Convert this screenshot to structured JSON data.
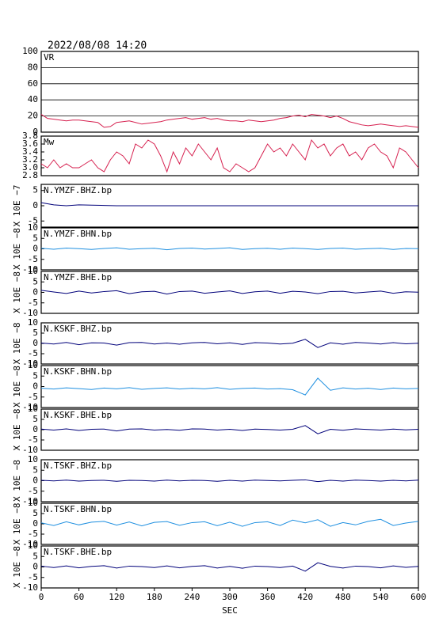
{
  "chart_data": [
    {
      "type": "line",
      "title": "2022/08/08 14:20",
      "xlim": [
        0,
        600
      ],
      "ylim": [
        0,
        100
      ],
      "yticks": [
        0,
        20,
        40,
        60,
        80,
        100
      ],
      "grid": true,
      "x": [
        0,
        10,
        20,
        30,
        40,
        50,
        60,
        70,
        80,
        90,
        100,
        110,
        120,
        130,
        140,
        150,
        160,
        170,
        180,
        190,
        200,
        210,
        220,
        230,
        240,
        250,
        260,
        270,
        280,
        290,
        300,
        310,
        320,
        330,
        340,
        350,
        360,
        370,
        380,
        390,
        400,
        410,
        420,
        430,
        440,
        450,
        460,
        470,
        480,
        490,
        500,
        510,
        520,
        530,
        540,
        550,
        560,
        570,
        580,
        590,
        600
      ],
      "series": [
        {
          "name": "VR",
          "color": "#d6204f",
          "values": [
            22,
            17,
            16,
            15,
            14,
            15,
            15,
            14,
            13,
            12,
            6,
            7,
            12,
            13,
            14,
            12,
            10,
            11,
            12,
            13,
            15,
            16,
            17,
            18,
            16,
            17,
            18,
            16,
            17,
            15,
            14,
            14,
            13,
            15,
            14,
            13,
            14,
            15,
            17,
            18,
            20,
            21,
            19,
            22,
            21,
            20,
            18,
            20,
            17,
            13,
            11,
            9,
            8,
            9,
            10,
            9,
            8,
            7,
            8,
            7,
            6
          ]
        }
      ]
    },
    {
      "type": "line",
      "xlim": [
        0,
        600
      ],
      "ylim": [
        2.8,
        3.8
      ],
      "yticks": [
        2.8,
        {
          "value": 3,
          "label": "3.0"
        },
        3.2,
        3.4,
        3.6,
        3.8
      ],
      "grid": false,
      "x": [
        0,
        10,
        20,
        30,
        40,
        50,
        60,
        70,
        80,
        90,
        100,
        110,
        120,
        130,
        140,
        150,
        160,
        170,
        180,
        190,
        200,
        210,
        220,
        230,
        240,
        250,
        260,
        270,
        280,
        290,
        300,
        310,
        320,
        330,
        340,
        350,
        360,
        370,
        380,
        390,
        400,
        410,
        420,
        430,
        440,
        450,
        460,
        470,
        480,
        490,
        500,
        510,
        520,
        530,
        540,
        550,
        560,
        570,
        580,
        590,
        600
      ],
      "series": [
        {
          "name": "Mw",
          "color": "#d6204f",
          "values": [
            3.1,
            3.0,
            3.2,
            3.0,
            3.1,
            3.0,
            3.0,
            3.1,
            3.2,
            3.0,
            2.9,
            3.2,
            3.4,
            3.3,
            3.1,
            3.6,
            3.5,
            3.7,
            3.6,
            3.3,
            2.9,
            3.4,
            3.1,
            3.5,
            3.3,
            3.6,
            3.4,
            3.2,
            3.5,
            3.0,
            2.9,
            3.1,
            3.0,
            2.9,
            3.0,
            3.3,
            3.6,
            3.4,
            3.5,
            3.3,
            3.6,
            3.4,
            3.2,
            3.7,
            3.5,
            3.6,
            3.3,
            3.5,
            3.6,
            3.3,
            3.4,
            3.2,
            3.5,
            3.6,
            3.4,
            3.3,
            3.0,
            3.5,
            3.4,
            3.2,
            3.0
          ]
        }
      ]
    },
    {
      "type": "line",
      "y_label": "X 10E −7",
      "xlim": [
        0,
        600
      ],
      "ylim": [
        -7,
        7
      ],
      "yticks": [
        -5,
        0,
        5
      ],
      "x": [
        0,
        20,
        40,
        60,
        80,
        100,
        120,
        140,
        160,
        180,
        200,
        220,
        240,
        260,
        280,
        300,
        320,
        340,
        360,
        380,
        400,
        420,
        440,
        460,
        480,
        500,
        520,
        540,
        560,
        580,
        600
      ],
      "series": [
        {
          "name": "N.YMZF.BHZ.bp",
          "color": "#00007a",
          "values": [
            1,
            0.3,
            0,
            0.3,
            0.2,
            0.1,
            0,
            0,
            0,
            0,
            0,
            0,
            0,
            0,
            0,
            0,
            0,
            0,
            0,
            0,
            0,
            0,
            0,
            0,
            0,
            0,
            0,
            0,
            0,
            0,
            0
          ]
        }
      ]
    },
    {
      "type": "line",
      "y_label": "X 10E −8",
      "xlim": [
        0,
        600
      ],
      "ylim": [
        -10,
        10
      ],
      "yticks": [
        -10,
        -5,
        0,
        5,
        10
      ],
      "x": [
        0,
        20,
        40,
        60,
        80,
        100,
        120,
        140,
        160,
        180,
        200,
        220,
        240,
        260,
        280,
        300,
        320,
        340,
        360,
        380,
        400,
        420,
        440,
        460,
        480,
        500,
        520,
        540,
        560,
        580,
        600
      ],
      "series": [
        {
          "name": "N.YMZF.BHN.bp",
          "color": "#1e8fe0",
          "values": [
            0.3,
            -0.2,
            0.4,
            0.1,
            -0.3,
            0.2,
            0.5,
            -0.2,
            0.1,
            0.3,
            -0.4,
            0.2,
            0.4,
            -0.1,
            0.2,
            0.5,
            -0.3,
            0.1,
            0.3,
            -0.2,
            0.4,
            0.1,
            -0.3,
            0.2,
            0.4,
            -0.2,
            0.1,
            0.3,
            -0.3,
            0.2,
            0.1
          ]
        }
      ]
    },
    {
      "type": "line",
      "y_label": "X 10E −8",
      "xlim": [
        0,
        600
      ],
      "ylim": [
        -10,
        10
      ],
      "yticks": [
        -10,
        -5,
        0,
        5,
        10
      ],
      "x": [
        0,
        20,
        40,
        60,
        80,
        100,
        120,
        140,
        160,
        180,
        200,
        220,
        240,
        260,
        280,
        300,
        320,
        340,
        360,
        380,
        400,
        420,
        440,
        460,
        480,
        500,
        520,
        540,
        560,
        580,
        600
      ],
      "series": [
        {
          "name": "N.YMZF.BHE.bp",
          "color": "#00007a",
          "values": [
            1,
            0.2,
            -0.5,
            0.6,
            -0.3,
            0.4,
            0.8,
            -0.6,
            0.3,
            0.5,
            -0.8,
            0.4,
            0.6,
            -0.4,
            0.2,
            0.7,
            -0.5,
            0.3,
            0.6,
            -0.4,
            0.5,
            0.2,
            -0.6,
            0.4,
            0.5,
            -0.3,
            0.2,
            0.6,
            -0.4,
            0.3,
            0.1
          ]
        }
      ]
    },
    {
      "type": "line",
      "y_label": "X 10E −8",
      "xlim": [
        0,
        600
      ],
      "ylim": [
        -10,
        10
      ],
      "yticks": [
        -10,
        -5,
        0,
        5,
        10
      ],
      "x": [
        0,
        20,
        40,
        60,
        80,
        100,
        120,
        140,
        160,
        180,
        200,
        220,
        240,
        260,
        280,
        300,
        320,
        340,
        360,
        380,
        400,
        420,
        440,
        460,
        480,
        500,
        520,
        540,
        560,
        580,
        600
      ],
      "series": [
        {
          "name": "N.KSKF.BHZ.bp",
          "color": "#00007a",
          "values": [
            0.2,
            -0.3,
            0.5,
            -0.6,
            0.3,
            0.2,
            -0.8,
            0.4,
            0.5,
            -0.3,
            0.2,
            -0.4,
            0.3,
            0.5,
            -0.2,
            0.3,
            -0.5,
            0.4,
            0.2,
            -0.3,
            0.1,
            2,
            -2,
            0.3,
            -0.4,
            0.5,
            0.2,
            -0.3,
            0.4,
            -0.2,
            0.1
          ]
        }
      ]
    },
    {
      "type": "line",
      "y_label": "X 10E −8",
      "xlim": [
        0,
        600
      ],
      "ylim": [
        -10,
        10
      ],
      "yticks": [
        -10,
        -5,
        0,
        5,
        10
      ],
      "x": [
        0,
        20,
        40,
        60,
        80,
        100,
        120,
        140,
        160,
        180,
        200,
        220,
        240,
        260,
        280,
        300,
        320,
        340,
        360,
        380,
        400,
        420,
        440,
        460,
        480,
        500,
        520,
        540,
        560,
        580,
        600
      ],
      "series": [
        {
          "name": "N.KSKF.BHN.bp",
          "color": "#1e8fe0",
          "values": [
            -0.8,
            -1.2,
            -0.6,
            -1,
            -1.4,
            -0.7,
            -1.1,
            -0.5,
            -1.3,
            -0.9,
            -0.6,
            -1.2,
            -0.8,
            -1.1,
            -0.5,
            -1.3,
            -0.9,
            -0.7,
            -1.2,
            -1,
            -1.5,
            -4,
            4,
            -1.8,
            -0.6,
            -1.2,
            -0.8,
            -1.4,
            -0.7,
            -1.1,
            -0.9
          ]
        }
      ]
    },
    {
      "type": "line",
      "y_label": "X 10E −8",
      "xlim": [
        0,
        600
      ],
      "ylim": [
        -10,
        10
      ],
      "yticks": [
        -10,
        -5,
        0,
        5,
        10
      ],
      "x": [
        0,
        20,
        40,
        60,
        80,
        100,
        120,
        140,
        160,
        180,
        200,
        220,
        240,
        260,
        280,
        300,
        320,
        340,
        360,
        380,
        400,
        420,
        440,
        460,
        480,
        500,
        520,
        540,
        560,
        580,
        600
      ],
      "series": [
        {
          "name": "N.KSKF.BHE.bp",
          "color": "#00007a",
          "values": [
            0.3,
            -0.2,
            0.4,
            -0.4,
            0.2,
            0.3,
            -0.6,
            0.3,
            0.4,
            -0.2,
            0.1,
            -0.3,
            0.4,
            0.3,
            -0.2,
            0.2,
            -0.4,
            0.3,
            0.1,
            -0.2,
            0.2,
            2,
            -2,
            0.2,
            -0.3,
            0.4,
            0.1,
            -0.2,
            0.3,
            -0.1,
            0.2
          ]
        }
      ]
    },
    {
      "type": "line",
      "y_label": "X 10E −8",
      "xlim": [
        0,
        600
      ],
      "ylim": [
        -10,
        10
      ],
      "yticks": [
        -10,
        -5,
        0,
        5,
        10
      ],
      "x": [
        0,
        20,
        40,
        60,
        80,
        100,
        120,
        140,
        160,
        180,
        200,
        220,
        240,
        260,
        280,
        300,
        320,
        340,
        360,
        380,
        400,
        420,
        440,
        460,
        480,
        500,
        520,
        540,
        560,
        580,
        600
      ],
      "series": [
        {
          "name": "N.TSKF.BHZ.bp",
          "color": "#00007a",
          "values": [
            0.2,
            -0.1,
            0.3,
            -0.2,
            0.1,
            0.2,
            -0.3,
            0.2,
            0.1,
            -0.2,
            0.3,
            -0.1,
            0.2,
            0.1,
            -0.3,
            0.2,
            -0.2,
            0.3,
            0.1,
            -0.1,
            0.2,
            0.4,
            -0.4,
            0.2,
            -0.2,
            0.3,
            0.1,
            -0.2,
            0.2,
            -0.1,
            0.3
          ]
        }
      ]
    },
    {
      "type": "line",
      "y_label": "X 10E −8",
      "xlim": [
        0,
        600
      ],
      "ylim": [
        -10,
        10
      ],
      "yticks": [
        -10,
        -5,
        0,
        5,
        10
      ],
      "x": [
        0,
        20,
        40,
        60,
        80,
        100,
        120,
        140,
        160,
        180,
        200,
        220,
        240,
        260,
        280,
        300,
        320,
        340,
        360,
        380,
        400,
        420,
        440,
        460,
        480,
        500,
        520,
        540,
        560,
        580,
        600
      ],
      "series": [
        {
          "name": "N.TSKF.BHN.bp",
          "color": "#1e8fe0",
          "values": [
            0.5,
            -0.8,
            1,
            -0.5,
            0.8,
            1.2,
            -0.6,
            0.9,
            -1,
            0.7,
            1.1,
            -0.7,
            0.6,
            1,
            -0.9,
            0.8,
            -1.2,
            0.6,
            1,
            -0.8,
            1.8,
            0.5,
            2,
            -1.2,
            0.6,
            -0.5,
            1.2,
            2.2,
            -0.8,
            0.4,
            1.2
          ]
        }
      ]
    },
    {
      "type": "line",
      "y_label": "X 10E −8",
      "xlim": [
        0,
        600
      ],
      "ylim": [
        -10,
        10
      ],
      "yticks": [
        -10,
        -5,
        0,
        5,
        10
      ],
      "x": [
        0,
        20,
        40,
        60,
        80,
        100,
        120,
        140,
        160,
        180,
        200,
        220,
        240,
        260,
        280,
        300,
        320,
        340,
        360,
        380,
        400,
        420,
        440,
        460,
        480,
        500,
        520,
        540,
        560,
        580,
        600
      ],
      "series": [
        {
          "name": "N.TSKF.BHE.bp",
          "color": "#00007a",
          "values": [
            0.4,
            -0.3,
            0.5,
            -0.4,
            0.3,
            0.6,
            -0.5,
            0.4,
            0.2,
            -0.3,
            0.5,
            -0.4,
            0.3,
            0.6,
            -0.5,
            0.3,
            -0.6,
            0.4,
            0.2,
            -0.3,
            0.4,
            -2,
            2,
            0.3,
            -0.5,
            0.4,
            0.2,
            -0.4,
            0.5,
            -0.2,
            0.3
          ]
        }
      ],
      "xticks": [
        0,
        60,
        120,
        180,
        240,
        300,
        360,
        420,
        480,
        540,
        600
      ],
      "x_label": "SEC"
    }
  ]
}
